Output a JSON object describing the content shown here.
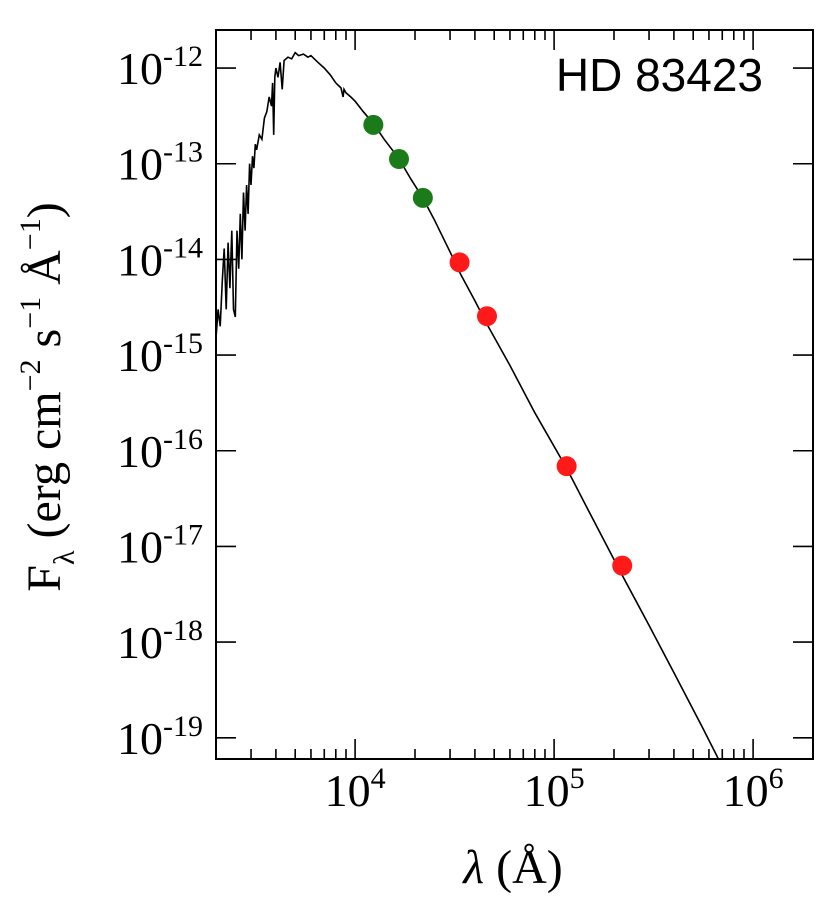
{
  "chart_data": {
    "type": "scatter",
    "title": "",
    "annotation": "HD 83423",
    "xlabel": {
      "main": "λ",
      "rest": " (Å)"
    },
    "ylabel": {
      "main": "F",
      "sub": "λ",
      "open": " (erg cm",
      "exp1": "−2",
      "s": " s",
      "exp2": "−1",
      "ang": " Å",
      "exp3": "−1",
      "close": ")"
    },
    "x_scale": "log",
    "y_scale": "log",
    "xlim": [
      2000,
      2000000
    ],
    "ylim": [
      6e-20,
      2.5e-12
    ],
    "x_ticks": [
      {
        "value": 10000,
        "base": "10",
        "exp": "4"
      },
      {
        "value": 100000,
        "base": "10",
        "exp": "5"
      },
      {
        "value": 1000000,
        "base": "10",
        "exp": "6"
      }
    ],
    "y_ticks": [
      {
        "value": 1e-12,
        "base": "10",
        "exp": "-12"
      },
      {
        "value": 1e-13,
        "base": "10",
        "exp": "-13"
      },
      {
        "value": 1e-14,
        "base": "10",
        "exp": "-14"
      },
      {
        "value": 1e-15,
        "base": "10",
        "exp": "-15"
      },
      {
        "value": 1e-16,
        "base": "10",
        "exp": "-16"
      },
      {
        "value": 1e-17,
        "base": "10",
        "exp": "-17"
      },
      {
        "value": 1e-18,
        "base": "10",
        "exp": "-18"
      },
      {
        "value": 1e-19,
        "base": "10",
        "exp": "-19"
      }
    ],
    "grid": false,
    "series": [
      {
        "kind": "line",
        "color": "#000000",
        "points": [
          [
            2000,
            1.5e-15
          ],
          [
            2050,
            3e-15
          ],
          [
            2100,
            2e-15
          ],
          [
            2150,
            6e-15
          ],
          [
            2200,
            1.3e-14
          ],
          [
            2250,
            3e-15
          ],
          [
            2300,
            1.5e-14
          ],
          [
            2350,
            5e-15
          ],
          [
            2400,
            2e-14
          ],
          [
            2450,
            3e-15
          ],
          [
            2500,
            2.5e-15
          ],
          [
            2550,
            2e-14
          ],
          [
            2600,
            8e-15
          ],
          [
            2650,
            3e-14
          ],
          [
            2700,
            1e-14
          ],
          [
            2750,
            5e-14
          ],
          [
            2800,
            2e-14
          ],
          [
            2850,
            6e-14
          ],
          [
            2900,
            3e-14
          ],
          [
            2950,
            1e-13
          ],
          [
            3000,
            6e-14
          ],
          [
            3050,
            1.2e-13
          ],
          [
            3100,
            9e-14
          ],
          [
            3150,
            1.6e-13
          ],
          [
            3200,
            1.4e-13
          ],
          [
            3300,
            2e-13
          ],
          [
            3400,
            1.8e-13
          ],
          [
            3500,
            3e-13
          ],
          [
            3600,
            3.5e-13
          ],
          [
            3700,
            5e-13
          ],
          [
            3800,
            4e-13
          ],
          [
            3850,
            7e-13
          ],
          [
            3900,
            2e-13
          ],
          [
            3950,
            8e-13
          ],
          [
            4000,
            1e-12
          ],
          [
            4100,
            8e-13
          ],
          [
            4200,
            1.15e-12
          ],
          [
            4300,
            6e-13
          ],
          [
            4400,
            1.2e-12
          ],
          [
            4600,
            1.3e-12
          ],
          [
            4800,
            1.25e-12
          ],
          [
            5000,
            1.45e-12
          ],
          [
            5200,
            1.35e-12
          ],
          [
            5500,
            1.4e-12
          ],
          [
            5800,
            1.3e-12
          ],
          [
            6000,
            1.35e-12
          ],
          [
            6500,
            1.15e-12
          ],
          [
            7000,
            1e-12
          ],
          [
            7500,
            8.5e-13
          ],
          [
            8000,
            7e-13
          ],
          [
            8300,
            6.5e-13
          ],
          [
            8500,
            6.2e-13
          ],
          [
            8700,
            5e-13
          ],
          [
            8800,
            6e-13
          ],
          [
            9000,
            5.5e-13
          ],
          [
            9500,
            5e-13
          ],
          [
            10000,
            4.5e-13
          ],
          [
            11000,
            3.5e-13
          ],
          [
            12400,
            2.6e-13
          ],
          [
            14000,
            1.8e-13
          ],
          [
            16500,
            1.15e-13
          ],
          [
            19000,
            7e-14
          ],
          [
            21900,
            4.4e-14
          ],
          [
            25000,
            2.6e-14
          ],
          [
            30000,
            1.2e-14
          ],
          [
            34000,
            6.9e-15
          ],
          [
            40000,
            3.7e-15
          ],
          [
            46000,
            2.1e-15
          ],
          [
            60000,
            7.8e-16
          ],
          [
            80000,
            2.5e-16
          ],
          [
            116000,
            6.5e-17
          ],
          [
            150000,
            2.3e-17
          ],
          [
            220000,
            5e-18
          ],
          [
            300000,
            1.5e-18
          ],
          [
            400000,
            4.8e-19
          ],
          [
            560000,
            1.25e-19
          ],
          [
            700000,
            5e-20
          ]
        ]
      },
      {
        "kind": "points",
        "color": "#1b7b1b",
        "points": [
          [
            12350,
            2.55e-13
          ],
          [
            16620,
            1.12e-13
          ],
          [
            21900,
            4.4e-14
          ]
        ]
      },
      {
        "kind": "points",
        "color": "#ff1a1a",
        "points": [
          [
            33500,
            9.3e-15
          ],
          [
            46000,
            2.55e-15
          ],
          [
            115600,
            6.9e-17
          ],
          [
            220000,
            6.3e-18
          ]
        ]
      }
    ]
  }
}
